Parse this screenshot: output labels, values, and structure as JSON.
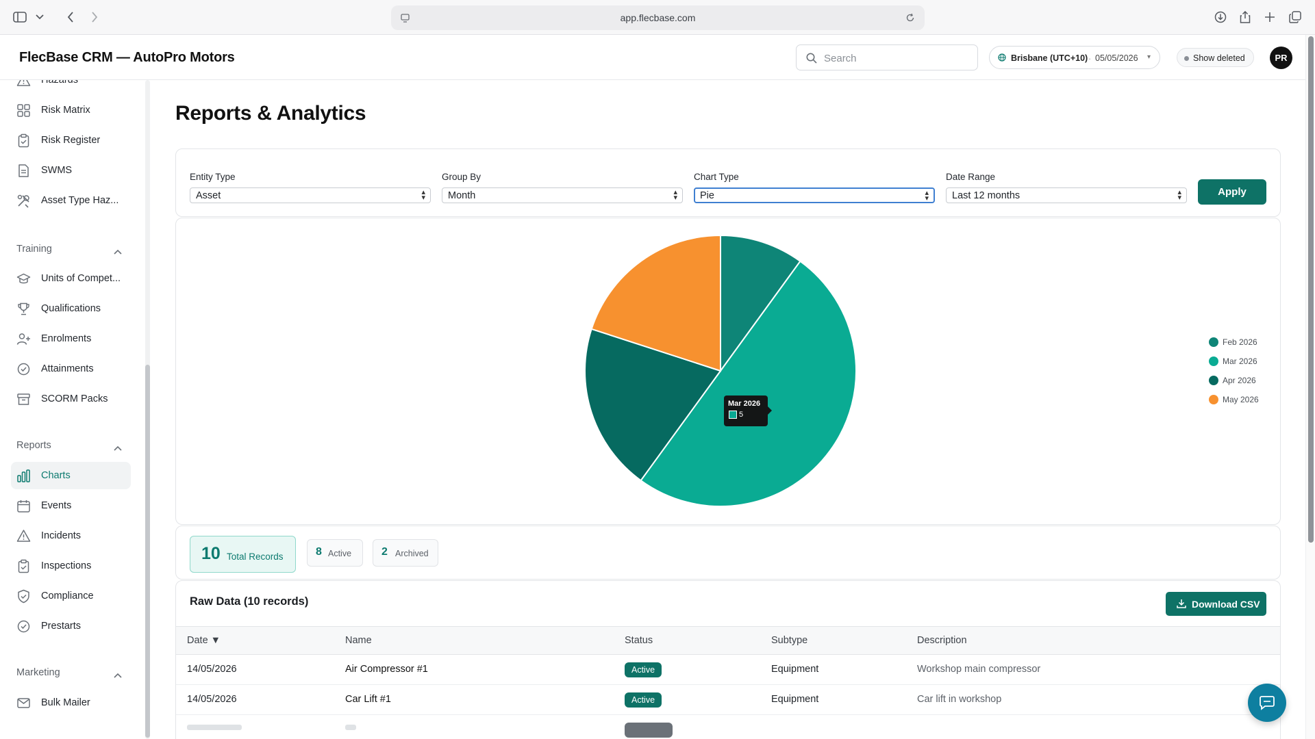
{
  "browser": {
    "url": "app.flecbase.com"
  },
  "header": {
    "app_title": "FlecBase CRM — AutoPro Motors",
    "search_placeholder": "Search",
    "timezone": "Brisbane (UTC+10)",
    "date": "05/05/2026",
    "show_deleted": "Show deleted",
    "avatar_initials": "PR"
  },
  "sidebar": {
    "items_top": [
      {
        "label": "Hazards",
        "icon": "warning-icon"
      },
      {
        "label": "Risk Matrix",
        "icon": "grid-icon"
      },
      {
        "label": "Risk Register",
        "icon": "clipboard-icon"
      },
      {
        "label": "SWMS",
        "icon": "document-icon"
      },
      {
        "label": "Asset Type Haz...",
        "icon": "tools-icon"
      }
    ],
    "sections": [
      {
        "title": "Training",
        "items": [
          {
            "label": "Units of Compet...",
            "icon": "graduation-cap-icon"
          },
          {
            "label": "Qualifications",
            "icon": "trophy-icon"
          },
          {
            "label": "Enrolments",
            "icon": "user-plus-icon"
          },
          {
            "label": "Attainments",
            "icon": "check-circle-icon"
          },
          {
            "label": "SCORM Packs",
            "icon": "archive-icon"
          }
        ]
      },
      {
        "title": "Reports",
        "items": [
          {
            "label": "Charts",
            "icon": "bar-chart-icon",
            "active": true
          },
          {
            "label": "Events",
            "icon": "calendar-icon"
          },
          {
            "label": "Incidents",
            "icon": "warning-icon"
          },
          {
            "label": "Inspections",
            "icon": "clipboard-check-icon"
          },
          {
            "label": "Compliance",
            "icon": "shield-check-icon"
          },
          {
            "label": "Prestarts",
            "icon": "check-circle-icon"
          }
        ]
      },
      {
        "title": "Marketing",
        "items": [
          {
            "label": "Bulk Mailer",
            "icon": "mail-icon"
          }
        ]
      }
    ]
  },
  "main": {
    "page_title": "Reports & Analytics",
    "filters": {
      "entity_type": {
        "label": "Entity Type",
        "value": "Asset"
      },
      "group_by": {
        "label": "Group By",
        "value": "Month"
      },
      "chart_type": {
        "label": "Chart Type",
        "value": "Pie"
      },
      "date_range": {
        "label": "Date Range",
        "value": "Last 12 months"
      },
      "apply": "Apply"
    },
    "tooltip": {
      "title": "Mar 2026",
      "value": "5"
    },
    "stats": {
      "total": {
        "value": "10",
        "label": "Total Records"
      },
      "active": {
        "value": "8",
        "label": "Active"
      },
      "archived": {
        "value": "2",
        "label": "Archived"
      }
    },
    "table": {
      "title": "Raw Data (10 records)",
      "download_label": "Download CSV",
      "columns": [
        "Date ▼",
        "Name",
        "Status",
        "Subtype",
        "Description"
      ],
      "rows": [
        {
          "date": "14/05/2026",
          "name": "Air Compressor #1",
          "status": "Active",
          "subtype": "Equipment",
          "description": "Workshop main compressor"
        },
        {
          "date": "14/05/2026",
          "name": "Car Lift #1",
          "status": "Active",
          "subtype": "Equipment",
          "description": "Car lift in workshop"
        }
      ]
    }
  },
  "colors": {
    "feb": "#0e8577",
    "mar": "#0aab93",
    "apr": "#066a60",
    "may": "#f7912f",
    "accent": "#0e7266"
  },
  "chart_data": {
    "type": "pie",
    "categories": [
      "Feb 2026",
      "Mar 2026",
      "Apr 2026",
      "May 2026"
    ],
    "values": [
      1,
      5,
      2,
      2
    ],
    "legend_position": "right"
  }
}
